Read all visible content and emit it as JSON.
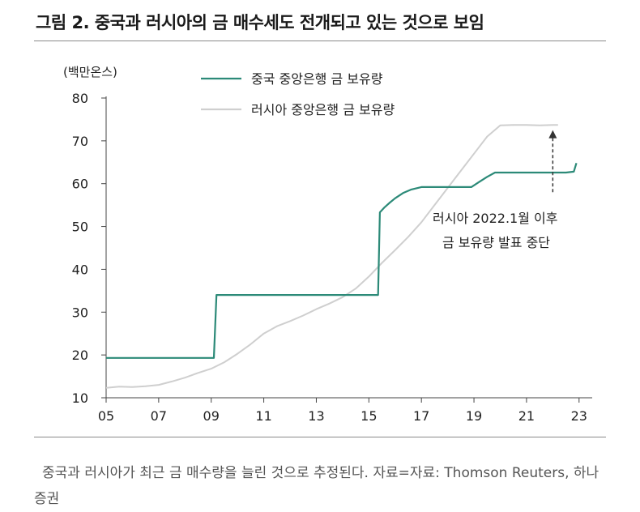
{
  "figure": {
    "title": "그림 2. 중국과 러시아의 금 매수세도 전개되고 있는 것으로 보임",
    "caption": "중국과 러시아가 최근 금 매수량을 늘린 것으로 추정된다. 자료=자료: Thomson Reuters, 하나증권"
  },
  "chart_data": {
    "type": "line",
    "y_unit_label": "(백만온스)",
    "xlim": [
      2005,
      2023.5
    ],
    "ylim": [
      10,
      80
    ],
    "x_ticks": [
      2005,
      2007,
      2009,
      2011,
      2013,
      2015,
      2017,
      2019,
      2021,
      2023
    ],
    "x_tick_labels": [
      "05",
      "07",
      "09",
      "11",
      "13",
      "15",
      "17",
      "19",
      "21",
      "23"
    ],
    "y_ticks": [
      10,
      20,
      30,
      40,
      50,
      60,
      70,
      80
    ],
    "grid": false,
    "legend_position": "top-left",
    "series": [
      {
        "name": "중국 중앙은행 금 보유량",
        "color": "#2c8a78",
        "x": [
          2005.0,
          2009.1,
          2009.2,
          2015.35,
          2015.42,
          2015.6,
          2015.8,
          2016.0,
          2016.3,
          2016.6,
          2017.0,
          2017.5,
          2018.0,
          2018.5,
          2018.9,
          2019.2,
          2019.5,
          2019.8,
          2020.5,
          2021.5,
          2022.5,
          2022.8,
          2022.9
        ],
        "y": [
          19.3,
          19.3,
          34.0,
          34.0,
          53.3,
          54.5,
          55.6,
          56.6,
          57.8,
          58.6,
          59.2,
          59.2,
          59.2,
          59.2,
          59.2,
          60.4,
          61.6,
          62.6,
          62.6,
          62.6,
          62.6,
          62.8,
          64.8
        ]
      },
      {
        "name": "러시아 중앙은행 금 보유량",
        "color": "#cfcfcf",
        "x": [
          2005.0,
          2005.5,
          2006.0,
          2006.5,
          2007.0,
          2007.5,
          2008.0,
          2008.5,
          2009.0,
          2009.5,
          2010.0,
          2010.5,
          2011.0,
          2011.5,
          2012.0,
          2012.5,
          2013.0,
          2013.5,
          2014.0,
          2014.5,
          2015.0,
          2015.5,
          2016.0,
          2016.5,
          2017.0,
          2017.5,
          2018.0,
          2018.5,
          2019.0,
          2019.5,
          2020.0,
          2020.5,
          2021.0,
          2021.5,
          2022.0,
          2022.2
        ],
        "y": [
          12.3,
          12.6,
          12.5,
          12.7,
          13.0,
          13.8,
          14.7,
          15.8,
          16.8,
          18.3,
          20.3,
          22.5,
          25.0,
          26.7,
          27.9,
          29.2,
          30.7,
          32.0,
          33.5,
          35.5,
          38.3,
          41.5,
          44.5,
          47.6,
          51.0,
          55.0,
          59.0,
          63.0,
          67.0,
          71.0,
          73.6,
          73.7,
          73.7,
          73.6,
          73.7,
          73.7
        ]
      }
    ],
    "annotation": {
      "lines": [
        "러시아 2022.1월 이후",
        "금 보유량 발표 중단"
      ],
      "arrow_x": 2022.0,
      "arrow_from_y": 58.0,
      "arrow_to_y": 72.5
    }
  }
}
